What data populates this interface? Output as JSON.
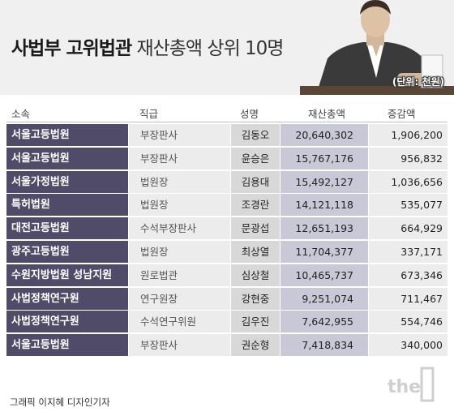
{
  "header": {
    "title_bold": "사법부 고위법관",
    "title_light": "재산총액 상위 10명",
    "unit": "(단위: 천원)"
  },
  "chart_data": {
    "type": "table",
    "columns": [
      "소속",
      "직급",
      "성명",
      "재산총액",
      "증감액"
    ],
    "rows": [
      [
        "서울고등법원",
        "부장판사",
        "김동오",
        "20,640,302",
        "1,906,200"
      ],
      [
        "서울고등법원",
        "부장판사",
        "윤승은",
        "15,767,176",
        "956,832"
      ],
      [
        "서울가정법원",
        "법원장",
        "김용대",
        "15,492,127",
        "1,036,656"
      ],
      [
        "특허법원",
        "법원장",
        "조경란",
        "14,121,118",
        "535,077"
      ],
      [
        "대전고등법원",
        "수석부장판사",
        "문광섭",
        "12,651,193",
        "664,929"
      ],
      [
        "광주고등법원",
        "법원장",
        "최상열",
        "11,704,377",
        "337,171"
      ],
      [
        "수원지방법원 성남지원",
        "원로법관",
        "심상철",
        "10,465,737",
        "673,346"
      ],
      [
        "사법정책연구원",
        "연구원장",
        "강현중",
        "9,251,074",
        "711,467"
      ],
      [
        "사법정책연구원",
        "수석연구위원",
        "김우진",
        "7,642,955",
        "554,746"
      ],
      [
        "서울고등법원",
        "부장판사",
        "권순형",
        "7,418,834",
        "340,000"
      ]
    ]
  },
  "footer": {
    "credit": "그래픽 이지혜 디자인기자",
    "logo_text": "the"
  },
  "colors": {
    "header_bg": "#f0f0f0",
    "org_bg": "#4f4b68",
    "total_bg": "#c9c8d6"
  }
}
